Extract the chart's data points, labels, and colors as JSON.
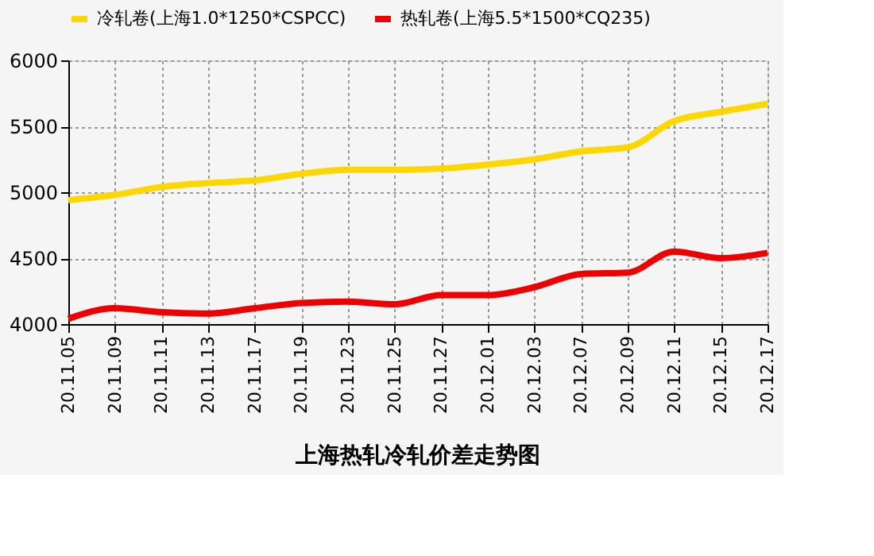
{
  "chart_data": {
    "type": "line",
    "title": "上海热轧冷轧价差走势图",
    "categories": [
      "20.11.05",
      "20.11.09",
      "20.11.11",
      "20.11.13",
      "20.11.17",
      "20.11.19",
      "20.11.23",
      "20.11.25",
      "20.11.27",
      "20.12.01",
      "20.12.03",
      "20.12.07",
      "20.12.09",
      "20.12.11",
      "20.12.15",
      "20.12.17"
    ],
    "series": [
      {
        "name": "冷轧卷(上海1.0*1250*CSPCC)",
        "color": "#ffd700",
        "values": [
          4940,
          4980,
          5040,
          5070,
          5090,
          5140,
          5170,
          5170,
          5180,
          5210,
          5250,
          5310,
          5340,
          5540,
          5610,
          5670
        ]
      },
      {
        "name": "热轧卷(上海5.5*1500*CQ235)",
        "color": "#ee0000",
        "values": [
          4040,
          4120,
          4090,
          4080,
          4120,
          4160,
          4170,
          4150,
          4220,
          4220,
          4280,
          4380,
          4390,
          4550,
          4500,
          4540
        ]
      }
    ],
    "ylim": [
      4000,
      6000
    ],
    "yticks": [
      4000,
      4500,
      5000,
      5500,
      6000
    ],
    "grid": true,
    "legend": "top",
    "marker": "none",
    "line_style": "solid"
  }
}
